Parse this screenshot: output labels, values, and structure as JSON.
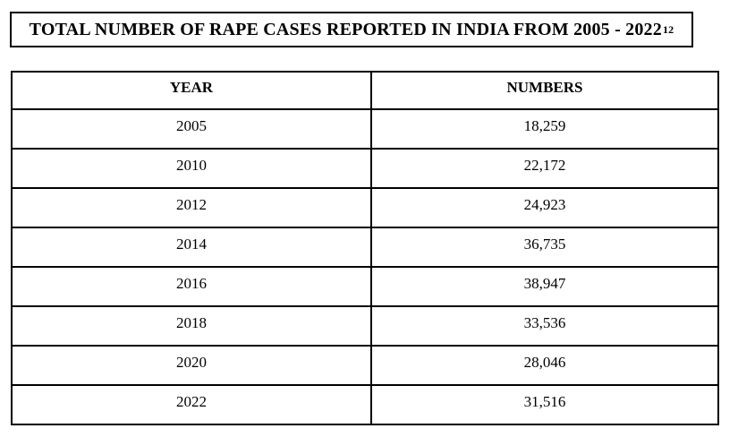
{
  "page": {
    "title": "TOTAL NUMBER OF RAPE CASES REPORTED IN INDIA FROM 2005 - 2022",
    "title_footnote_ref": "12"
  },
  "table": {
    "columns": [
      "YEAR",
      "NUMBERS"
    ],
    "rows": [
      {
        "year": "2005",
        "numbers": "18,259"
      },
      {
        "year": "2010",
        "numbers": "22,172"
      },
      {
        "year": "2012",
        "numbers": "24,923"
      },
      {
        "year": "2014",
        "numbers": "36,735"
      },
      {
        "year": "2016",
        "numbers": "38,947"
      },
      {
        "year": "2018",
        "numbers": "33,536"
      },
      {
        "year": "2020",
        "numbers": "28,046"
      },
      {
        "year": "2022",
        "numbers": "31,516"
      }
    ]
  },
  "colors": {
    "text": "#000000",
    "border": "#000000",
    "background": "#ffffff"
  }
}
